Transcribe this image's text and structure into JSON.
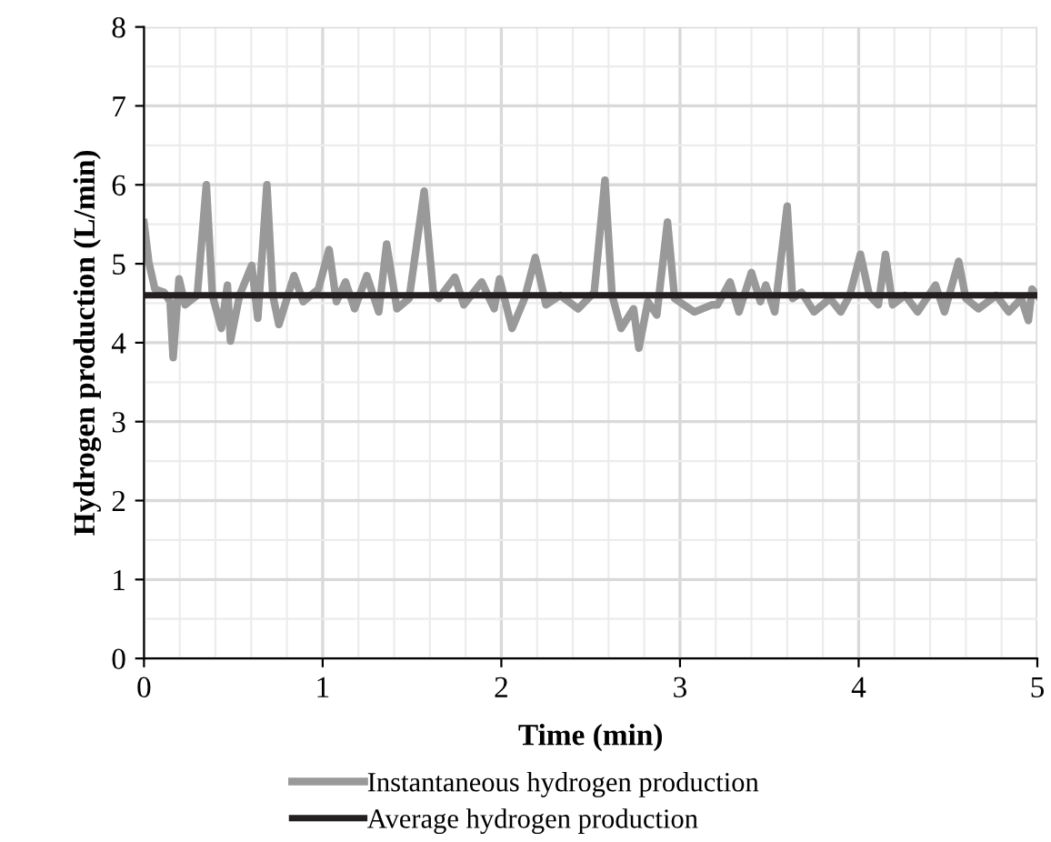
{
  "chart_data": {
    "type": "line",
    "xlabel": "Time (min)",
    "ylabel": "Hydrogen production (L/min)",
    "xlim": [
      0,
      5
    ],
    "ylim": [
      0,
      8
    ],
    "xticks": [
      0,
      1,
      2,
      3,
      4,
      5
    ],
    "yticks": [
      0,
      1,
      2,
      3,
      4,
      5,
      6,
      7,
      8
    ],
    "grid": true,
    "legend": "bottom",
    "marker": "none",
    "line_style": "solid",
    "series": [
      {
        "name": "Instantaneous hydrogen production",
        "color": "#999999",
        "x": [
          0,
          0.027,
          0.061,
          0.112,
          0.146,
          0.163,
          0.196,
          0.23,
          0.298,
          0.349,
          0.383,
          0.433,
          0.467,
          0.484,
          0.535,
          0.603,
          0.637,
          0.688,
          0.721,
          0.755,
          0.84,
          0.891,
          0.976,
          1.036,
          1.077,
          1.128,
          1.179,
          1.247,
          1.314,
          1.358,
          1.416,
          1.484,
          1.568,
          1.619,
          1.65,
          1.74,
          1.79,
          1.89,
          1.96,
          1.99,
          2.06,
          2.13,
          2.19,
          2.25,
          2.33,
          2.43,
          2.52,
          2.58,
          2.62,
          2.67,
          2.74,
          2.77,
          2.82,
          2.87,
          2.93,
          2.97,
          3.08,
          3.18,
          3.21,
          3.28,
          3.33,
          3.4,
          3.45,
          3.48,
          3.53,
          3.6,
          3.63,
          3.68,
          3.75,
          3.84,
          3.9,
          3.95,
          4.01,
          4.06,
          4.11,
          4.15,
          4.19,
          4.26,
          4.33,
          4.43,
          4.48,
          4.56,
          4.6,
          4.67,
          4.77,
          4.84,
          4.91,
          4.95,
          4.97,
          5
        ],
        "values": [
          5.52,
          5.02,
          4.68,
          4.64,
          4.52,
          3.81,
          4.81,
          4.48,
          4.6,
          6.0,
          4.6,
          4.18,
          4.73,
          4.02,
          4.6,
          4.98,
          4.31,
          6.0,
          4.6,
          4.23,
          4.85,
          4.52,
          4.68,
          5.18,
          4.52,
          4.77,
          4.43,
          4.85,
          4.39,
          5.25,
          4.43,
          4.56,
          5.92,
          4.64,
          4.56,
          4.83,
          4.48,
          4.77,
          4.43,
          4.81,
          4.18,
          4.56,
          5.08,
          4.48,
          4.6,
          4.43,
          4.64,
          6.06,
          4.6,
          4.18,
          4.43,
          3.93,
          4.52,
          4.35,
          5.53,
          4.56,
          4.39,
          4.48,
          4.48,
          4.77,
          4.39,
          4.89,
          4.52,
          4.73,
          4.39,
          5.73,
          4.56,
          4.64,
          4.39,
          4.56,
          4.39,
          4.6,
          5.12,
          4.6,
          4.48,
          5.12,
          4.48,
          4.6,
          4.39,
          4.73,
          4.39,
          5.03,
          4.56,
          4.43,
          4.6,
          4.39,
          4.56,
          4.28,
          4.68,
          4.6
        ]
      },
      {
        "name": "Average hydrogen production",
        "color": "#231f20",
        "x": [
          0,
          5
        ],
        "values": [
          4.6,
          4.6
        ]
      }
    ]
  }
}
